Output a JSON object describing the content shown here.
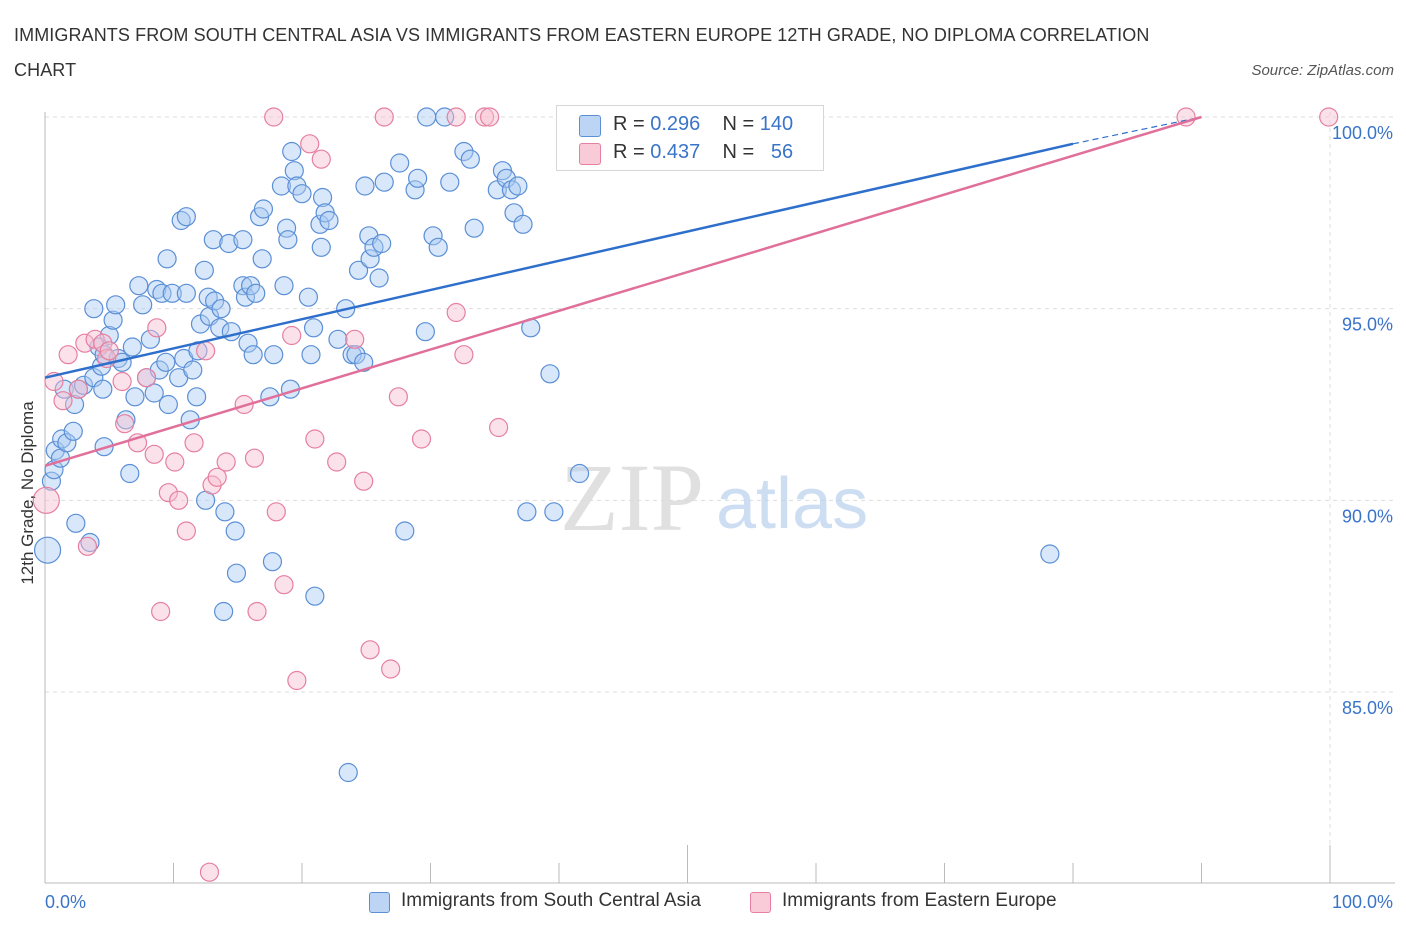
{
  "title": "IMMIGRANTS FROM SOUTH CENTRAL ASIA VS IMMIGRANTS FROM EASTERN EUROPE 12TH GRADE, NO DIPLOMA CORRELATION CHART",
  "source": "Source: ZipAtlas.com",
  "watermark": {
    "zip": "ZIP",
    "atlas": "atlas"
  },
  "colors": {
    "blue_fill": "#a9c9f2",
    "blue_stroke": "#5b8fd6",
    "blue_line": "#2e6fcc",
    "pink_fill": "#f7bfd0",
    "pink_stroke": "#e67fa0",
    "pink_line": "#e0709a",
    "value_text": "#3a74c8"
  },
  "legend_top": [
    {
      "r_label": "R =",
      "r_value": "0.296",
      "n_label": "N =",
      "n_value": "140"
    },
    {
      "r_label": "R =",
      "r_value": "0.437",
      "n_label": "N =",
      "n_value": "56"
    }
  ],
  "chart_data": {
    "type": "scatter",
    "title": "IMMIGRANTS FROM SOUTH CENTRAL ASIA VS IMMIGRANTS FROM EASTERN EUROPE 12TH GRADE, NO DIPLOMA CORRELATION CHART",
    "xlabel": "",
    "ylabel": "12th Grade, No Diploma",
    "xlim": [
      0,
      100
    ],
    "ylim": [
      80.5,
      100.5
    ],
    "x_ticks": [
      "0.0%",
      "100.0%"
    ],
    "y_ticks": [
      {
        "value": 100,
        "label": "100.0%"
      },
      {
        "value": 95,
        "label": "95.0%"
      },
      {
        "value": 90,
        "label": "90.0%"
      },
      {
        "value": 85,
        "label": "85.0%"
      }
    ],
    "grid": true,
    "legend_position": "bottom",
    "series": [
      {
        "name": "Immigrants from South Central Asia",
        "color": "#5b8fd6",
        "trend": {
          "x": [
            0,
            80
          ],
          "y": [
            93.2,
            99.3
          ],
          "dashed_to": [
            90,
            100
          ]
        },
        "points": [
          [
            0.2,
            88.7
          ],
          [
            0.5,
            90.5
          ],
          [
            0.7,
            90.8
          ],
          [
            0.8,
            91.3
          ],
          [
            1.2,
            91.1
          ],
          [
            1.3,
            91.6
          ],
          [
            1.5,
            92.9
          ],
          [
            1.7,
            91.5
          ],
          [
            2.2,
            91.8
          ],
          [
            2.3,
            92.5
          ],
          [
            2.4,
            89.4
          ],
          [
            2.6,
            92.9
          ],
          [
            3.0,
            93.0
          ],
          [
            3.5,
            88.9
          ],
          [
            3.8,
            93.2
          ],
          [
            3.8,
            95.0
          ],
          [
            4.2,
            94.0
          ],
          [
            4.4,
            93.5
          ],
          [
            4.5,
            92.9
          ],
          [
            4.6,
            91.4
          ],
          [
            4.6,
            93.8
          ],
          [
            5.0,
            94.3
          ],
          [
            5.3,
            94.7
          ],
          [
            5.5,
            95.1
          ],
          [
            5.7,
            93.7
          ],
          [
            6.0,
            93.6
          ],
          [
            6.3,
            92.1
          ],
          [
            6.6,
            90.7
          ],
          [
            6.8,
            94.0
          ],
          [
            7.0,
            92.7
          ],
          [
            7.3,
            95.6
          ],
          [
            7.6,
            95.1
          ],
          [
            7.9,
            93.2
          ],
          [
            8.2,
            94.2
          ],
          [
            8.5,
            92.8
          ],
          [
            8.7,
            95.5
          ],
          [
            8.9,
            93.4
          ],
          [
            9.1,
            95.4
          ],
          [
            9.4,
            93.6
          ],
          [
            9.5,
            96.3
          ],
          [
            9.6,
            92.5
          ],
          [
            9.9,
            95.4
          ],
          [
            10.4,
            93.2
          ],
          [
            10.6,
            97.3
          ],
          [
            10.8,
            93.7
          ],
          [
            11.0,
            95.4
          ],
          [
            11.0,
            97.4
          ],
          [
            11.3,
            92.1
          ],
          [
            11.5,
            93.4
          ],
          [
            11.8,
            92.7
          ],
          [
            11.9,
            93.9
          ],
          [
            12.1,
            94.6
          ],
          [
            12.4,
            96.0
          ],
          [
            12.5,
            90.0
          ],
          [
            12.7,
            95.3
          ],
          [
            12.8,
            94.8
          ],
          [
            13.1,
            96.8
          ],
          [
            13.2,
            95.2
          ],
          [
            13.6,
            94.5
          ],
          [
            13.7,
            95.0
          ],
          [
            13.9,
            87.1
          ],
          [
            14.0,
            89.7
          ],
          [
            14.3,
            96.7
          ],
          [
            14.5,
            94.4
          ],
          [
            14.8,
            89.2
          ],
          [
            14.9,
            88.1
          ],
          [
            15.4,
            96.8
          ],
          [
            15.4,
            95.6
          ],
          [
            15.6,
            95.3
          ],
          [
            15.8,
            94.1
          ],
          [
            16.0,
            95.6
          ],
          [
            16.2,
            93.8
          ],
          [
            16.4,
            95.4
          ],
          [
            16.7,
            97.4
          ],
          [
            16.9,
            96.3
          ],
          [
            17.0,
            97.6
          ],
          [
            17.5,
            92.7
          ],
          [
            17.7,
            88.4
          ],
          [
            17.8,
            93.8
          ],
          [
            18.4,
            98.2
          ],
          [
            18.6,
            95.6
          ],
          [
            18.8,
            97.1
          ],
          [
            18.9,
            96.8
          ],
          [
            19.1,
            92.9
          ],
          [
            19.2,
            99.1
          ],
          [
            19.4,
            98.6
          ],
          [
            19.6,
            98.2
          ],
          [
            20.0,
            98.0
          ],
          [
            20.5,
            95.3
          ],
          [
            20.7,
            93.8
          ],
          [
            20.9,
            94.5
          ],
          [
            21.0,
            87.5
          ],
          [
            21.4,
            97.2
          ],
          [
            21.5,
            96.6
          ],
          [
            21.6,
            97.9
          ],
          [
            21.8,
            97.5
          ],
          [
            22.1,
            97.3
          ],
          [
            22.8,
            94.2
          ],
          [
            23.4,
            95.0
          ],
          [
            23.6,
            82.9
          ],
          [
            23.9,
            93.8
          ],
          [
            24.2,
            93.8
          ],
          [
            24.4,
            96.0
          ],
          [
            24.8,
            93.6
          ],
          [
            24.9,
            98.2
          ],
          [
            25.2,
            96.9
          ],
          [
            25.3,
            96.3
          ],
          [
            25.6,
            96.6
          ],
          [
            26.0,
            95.8
          ],
          [
            26.2,
            96.7
          ],
          [
            26.4,
            98.3
          ],
          [
            27.6,
            98.8
          ],
          [
            28.0,
            89.2
          ],
          [
            28.8,
            98.1
          ],
          [
            29.0,
            98.4
          ],
          [
            29.6,
            94.4
          ],
          [
            29.7,
            100.0
          ],
          [
            30.2,
            96.9
          ],
          [
            30.6,
            96.6
          ],
          [
            31.1,
            100.0
          ],
          [
            31.5,
            98.3
          ],
          [
            32.6,
            99.1
          ],
          [
            33.1,
            98.9
          ],
          [
            33.4,
            97.1
          ],
          [
            35.2,
            98.1
          ],
          [
            35.6,
            98.6
          ],
          [
            35.9,
            98.4
          ],
          [
            36.3,
            98.1
          ],
          [
            36.5,
            97.5
          ],
          [
            36.8,
            98.2
          ],
          [
            37.2,
            97.2
          ],
          [
            37.5,
            89.7
          ],
          [
            37.8,
            94.5
          ],
          [
            39.3,
            93.3
          ],
          [
            39.6,
            89.7
          ],
          [
            41.6,
            90.7
          ],
          [
            78.2,
            88.6
          ]
        ]
      },
      {
        "name": "Immigrants from Eastern Europe",
        "color": "#e67fa0",
        "trend": {
          "x": [
            0,
            90
          ],
          "y": [
            90.9,
            100.0
          ]
        },
        "points": [
          [
            0.1,
            90.0
          ],
          [
            0.7,
            93.1
          ],
          [
            1.4,
            92.6
          ],
          [
            1.8,
            93.8
          ],
          [
            2.6,
            92.9
          ],
          [
            3.1,
            94.1
          ],
          [
            3.3,
            88.8
          ],
          [
            3.9,
            94.2
          ],
          [
            4.5,
            94.1
          ],
          [
            4.8,
            93.7
          ],
          [
            5.0,
            93.9
          ],
          [
            6.0,
            93.1
          ],
          [
            6.2,
            92.0
          ],
          [
            7.2,
            91.5
          ],
          [
            7.9,
            93.2
          ],
          [
            8.5,
            91.2
          ],
          [
            8.7,
            94.5
          ],
          [
            9.0,
            87.1
          ],
          [
            9.6,
            90.2
          ],
          [
            10.1,
            91.0
          ],
          [
            10.4,
            90.0
          ],
          [
            11.0,
            89.2
          ],
          [
            11.6,
            91.5
          ],
          [
            12.5,
            93.9
          ],
          [
            12.8,
            80.3
          ],
          [
            13.0,
            90.4
          ],
          [
            13.4,
            90.6
          ],
          [
            14.1,
            91.0
          ],
          [
            15.5,
            92.5
          ],
          [
            16.3,
            91.1
          ],
          [
            16.5,
            87.1
          ],
          [
            17.8,
            100.0
          ],
          [
            18.0,
            89.7
          ],
          [
            18.6,
            87.8
          ],
          [
            19.2,
            94.3
          ],
          [
            19.6,
            85.3
          ],
          [
            20.6,
            99.3
          ],
          [
            21.0,
            91.6
          ],
          [
            21.5,
            98.9
          ],
          [
            22.7,
            91.0
          ],
          [
            24.1,
            94.2
          ],
          [
            24.8,
            90.5
          ],
          [
            25.3,
            86.1
          ],
          [
            26.4,
            100.0
          ],
          [
            26.9,
            85.6
          ],
          [
            27.5,
            92.7
          ],
          [
            29.3,
            91.6
          ],
          [
            32.0,
            94.9
          ],
          [
            32.0,
            100.0
          ],
          [
            32.6,
            93.8
          ],
          [
            34.2,
            100.0
          ],
          [
            34.6,
            100.0
          ],
          [
            35.3,
            91.9
          ],
          [
            88.8,
            100.0
          ],
          [
            99.9,
            100.0
          ]
        ]
      }
    ]
  },
  "bottom_legend": [
    {
      "label": "Immigrants from South Central Asia"
    },
    {
      "label": "Immigrants from Eastern Europe"
    }
  ]
}
